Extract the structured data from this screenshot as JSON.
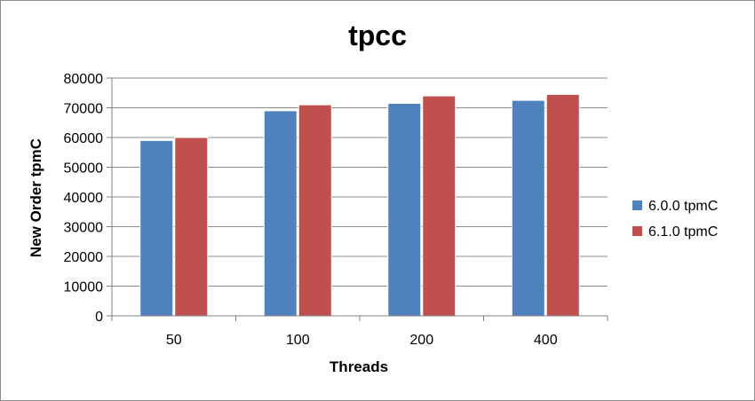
{
  "chart_data": {
    "type": "bar",
    "title": "tpcc",
    "xlabel": "Threads",
    "ylabel": "New Order tpmC",
    "categories": [
      "50",
      "100",
      "200",
      "400"
    ],
    "series": [
      {
        "name": "6.0.0 tpmC",
        "color": "#4f81bd",
        "values": [
          59000,
          69000,
          71500,
          72500
        ]
      },
      {
        "name": "6.1.0 tpmC",
        "color": "#c0504d",
        "values": [
          60000,
          71000,
          74000,
          74500
        ]
      }
    ],
    "ylim": [
      0,
      80000
    ],
    "yticks": [
      "0",
      "10000",
      "20000",
      "30000",
      "40000",
      "50000",
      "60000",
      "70000",
      "80000"
    ],
    "grid": true,
    "legend": "right"
  }
}
